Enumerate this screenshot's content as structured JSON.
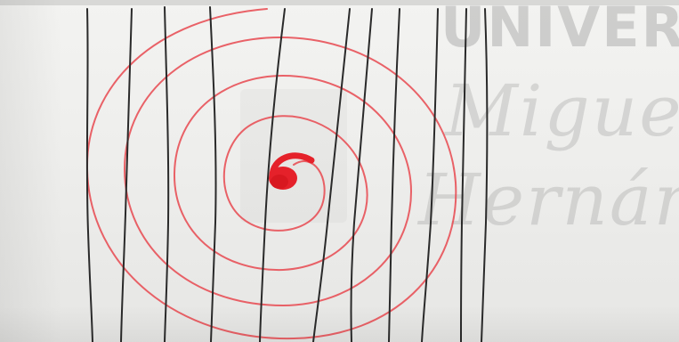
{
  "image": {
    "description_colors": {
      "paper": "#eeeeec",
      "pen_lines": "#2a2a2a",
      "spiral": "#e8484f",
      "center_blob": "#e5212a"
    }
  },
  "watermark": {
    "line1": "UNIVER",
    "line2": "Miguel",
    "line3": "Hernán"
  }
}
